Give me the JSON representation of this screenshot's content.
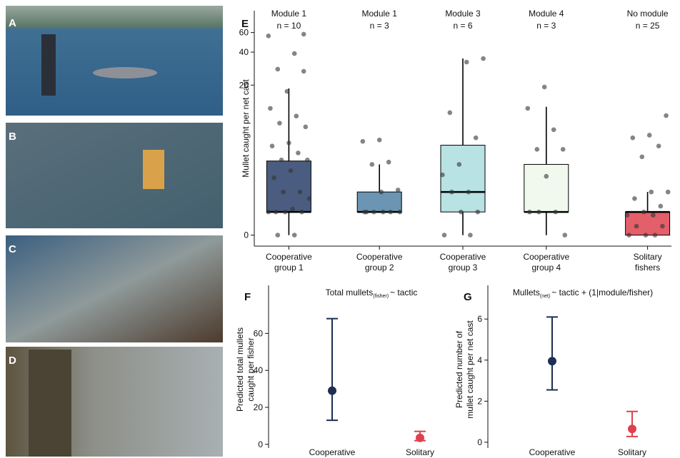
{
  "photos": [
    {
      "label": "A"
    },
    {
      "label": "B"
    },
    {
      "label": "C"
    },
    {
      "label": "D"
    }
  ],
  "chart_data": [
    {
      "type": "box",
      "panel_label": "E",
      "y_label": "Mullet caught per net cast",
      "scale": "log1p",
      "ylim": [
        -0.2,
        94
      ],
      "yticks": [
        0,
        20,
        40,
        60
      ],
      "modules": [
        "Module 1",
        "Module 1",
        "Module 3",
        "Module 4",
        "No module"
      ],
      "n_labels": [
        "n = 10",
        "n = 3",
        "n = 6",
        "n = 3",
        "n = 25"
      ],
      "categories": [
        [
          "Cooperative",
          "group 1"
        ],
        [
          "Cooperative",
          "group 2"
        ],
        [
          "Cooperative",
          "group 3"
        ],
        [
          "Cooperative",
          "group 4"
        ],
        [
          "Solitary",
          "fishers"
        ]
      ],
      "boxes": [
        {
          "min": 0,
          "q1": 0.6,
          "median": 0.6,
          "q3": 3.5,
          "max": 18.6,
          "color": "#4a5d80",
          "points": [
            56,
            38.8,
            28,
            26.8,
            17.5,
            12.1,
            10.2,
            8.7,
            8,
            5.5,
            5.1,
            4.3,
            3.6,
            3.6,
            2.7,
            2.2,
            1.4,
            1.4,
            1.1,
            0.7,
            0.6,
            0.6,
            0.6,
            0.6,
            0,
            0,
            58
          ]
        },
        {
          "min": 0.6,
          "q1": 0.6,
          "median": 0.6,
          "q3": 1.4,
          "max": 3.2,
          "color": "#6b95b2",
          "points": [
            5.9,
            5.7,
            3.4,
            3.2,
            1.5,
            1.4,
            0.6,
            0.6,
            0.6,
            0.6,
            0.6,
            0.6
          ]
        },
        {
          "min": 0,
          "q1": 0.6,
          "median": 1.4,
          "q3": 5.2,
          "max": 35,
          "color": "#b8e2e4",
          "points": [
            35,
            32.5,
            11,
            6.2,
            3.2,
            2.4,
            1.4,
            1.4,
            0.6,
            0.6,
            0,
            0
          ]
        },
        {
          "min": 0,
          "q1": 0.6,
          "median": 0.6,
          "q3": 3.2,
          "max": 12.5,
          "color": "#f1f9ee",
          "points": [
            19.2,
            12.1,
            7.5,
            4.7,
            4.7,
            2.3,
            0.6,
            0.6,
            0.6,
            0
          ]
        },
        {
          "min": 0,
          "q1": 0,
          "median": 0.6,
          "q3": 0.6,
          "max": 1.4,
          "color": "#e35f6a",
          "points": [
            10.3,
            6.6,
            6.2,
            5.1,
            3.9,
            1.4,
            1.4,
            1.1,
            0.8,
            0.6,
            0.5,
            0.5,
            0.2,
            0.2,
            0,
            0,
            0
          ]
        }
      ]
    },
    {
      "type": "pointrange",
      "panel_label": "F",
      "title": "Total mullets",
      "title_sub": "(fisher)",
      "title_rest": "~ tactic",
      "y_label": [
        "Predicted total mullets",
        "caught per fisher"
      ],
      "ylim": [
        -2,
        86
      ],
      "yticks": [
        0,
        20,
        40,
        60
      ],
      "categories": [
        "Cooperative",
        "Solitary"
      ],
      "values": [
        29,
        3.5
      ],
      "lower": [
        13,
        2
      ],
      "upper": [
        68,
        7
      ],
      "colors": [
        "#1c2f52",
        "#e0404e"
      ]
    },
    {
      "type": "pointrange",
      "panel_label": "G",
      "title": "Mullets",
      "title_sub": "(net)",
      "title_rest": "~ tactic + (1|module/fisher)",
      "y_label": [
        "Predicted number of",
        "mullet caught per net cast"
      ],
      "ylim": [
        -0.28,
        7.64
      ],
      "yticks": [
        0,
        2,
        4,
        6
      ],
      "categories": [
        "Cooperative",
        "Solitary"
      ],
      "values": [
        3.95,
        0.65
      ],
      "lower": [
        2.55,
        0.28
      ],
      "upper": [
        6.1,
        1.5
      ],
      "colors": [
        "#1c2f52",
        "#e0404e"
      ]
    }
  ]
}
